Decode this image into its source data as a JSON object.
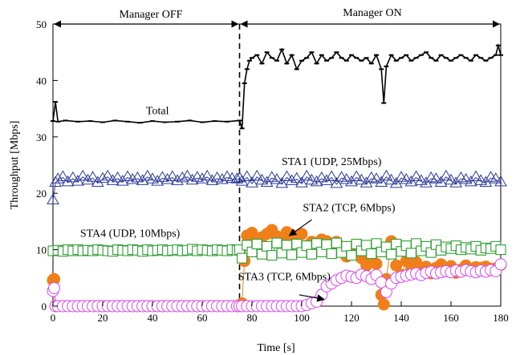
{
  "chart_data": {
    "type": "line",
    "title": "",
    "xlabel": "Time [s]",
    "ylabel": "Throughput [Mbps]",
    "xlim": [
      0,
      180
    ],
    "ylim": [
      0,
      50
    ],
    "xticks": [
      "0",
      "20",
      "40",
      "60",
      "80",
      "100",
      "120",
      "140",
      "160",
      "180"
    ],
    "yticks": [
      "0",
      "10",
      "20",
      "30",
      "40",
      "50"
    ],
    "grid": false,
    "legend": "none",
    "phases": [
      {
        "label": "Manager OFF",
        "x_start": 0,
        "x_end": 75
      },
      {
        "label": "Manager ON",
        "x_start": 75,
        "x_end": 180
      }
    ],
    "switch_time": 75,
    "annotations": [
      {
        "text": "Total",
        "x": 42,
        "y": 34
      },
      {
        "text": "STA1 (UDP, 25Mbps)",
        "x": 112,
        "y": 25
      },
      {
        "text": "STA2 (TCP, 6Mbps)",
        "x": 119,
        "y": 16.8
      },
      {
        "text": "STA4 (UDP, 10Mbps)",
        "x": 31,
        "y": 12.3
      },
      {
        "text": "STA3 (TCP, 6Mbps)",
        "x": 93,
        "y": 4.6
      }
    ],
    "series": [
      {
        "id": "total",
        "color": "#000000",
        "marker": "dash",
        "x": [
          0,
          1,
          2,
          5,
          10,
          15,
          20,
          25,
          30,
          35,
          40,
          45,
          50,
          55,
          60,
          65,
          70,
          75,
          76,
          77,
          78,
          79,
          80,
          82,
          84,
          86,
          88,
          90,
          92,
          94,
          96,
          98,
          100,
          102,
          104,
          106,
          108,
          110,
          112,
          114,
          116,
          118,
          120,
          122,
          124,
          126,
          128,
          130,
          132,
          133,
          134,
          136,
          138,
          140,
          142,
          144,
          146,
          148,
          150,
          152,
          154,
          156,
          158,
          160,
          162,
          164,
          166,
          168,
          170,
          172,
          174,
          176,
          178,
          179,
          180
        ],
        "y": [
          32.8,
          36.2,
          32.7,
          32.9,
          32.7,
          32.8,
          32.6,
          32.9,
          32.7,
          32.5,
          32.8,
          32.6,
          32.7,
          32.9,
          32.6,
          32.8,
          32.7,
          32.9,
          31.5,
          39.5,
          42,
          43.5,
          44,
          44.5,
          43,
          45,
          44,
          43.5,
          45.5,
          43,
          44.5,
          42,
          43.5,
          44,
          45,
          43,
          44.5,
          43.5,
          44,
          45,
          44,
          43.5,
          44.5,
          44,
          43.5,
          44,
          43,
          44.5,
          42,
          36,
          42.5,
          44.5,
          43.5,
          44,
          44.5,
          43.5,
          44,
          44.5,
          45,
          44,
          43.5,
          44.5,
          44,
          43.5,
          44,
          44.5,
          44,
          43.5,
          44.5,
          44,
          43.5,
          44,
          44.5,
          46.2,
          44.5
        ]
      },
      {
        "id": "sta1",
        "color": "#2b3a99",
        "marker": "triangle",
        "x": [
          0,
          1,
          2,
          4,
          6,
          8,
          10,
          12,
          14,
          16,
          18,
          20,
          22,
          24,
          26,
          28,
          30,
          32,
          34,
          36,
          38,
          40,
          42,
          44,
          46,
          48,
          50,
          52,
          54,
          56,
          58,
          60,
          62,
          64,
          66,
          68,
          70,
          72,
          74,
          75,
          76,
          78,
          80,
          82,
          84,
          86,
          88,
          90,
          92,
          94,
          96,
          98,
          100,
          102,
          104,
          106,
          108,
          110,
          112,
          114,
          116,
          118,
          120,
          122,
          124,
          126,
          128,
          130,
          132,
          134,
          136,
          138,
          140,
          142,
          144,
          146,
          148,
          150,
          152,
          154,
          156,
          158,
          160,
          162,
          164,
          166,
          168,
          170,
          172,
          174,
          176,
          178,
          180
        ],
        "y": [
          18.7,
          21.8,
          22.4,
          22.8,
          21.9,
          22.6,
          22.0,
          22.9,
          22.2,
          22.7,
          21.8,
          22.5,
          22.9,
          22.1,
          22.6,
          22.0,
          22.8,
          22.3,
          22.6,
          22.1,
          22.9,
          22.4,
          22.0,
          22.7,
          22.3,
          22.8,
          22.1,
          22.6,
          22.9,
          22.2,
          22.7,
          22.4,
          22.9,
          22.1,
          22.6,
          22.3,
          22.8,
          22.5,
          22.4,
          22.6,
          22.0,
          22.8,
          21.7,
          22.9,
          22.2,
          21.8,
          22.7,
          22.3,
          21.6,
          22.8,
          22.1,
          22.5,
          21.7,
          22.9,
          22.2,
          21.9,
          22.6,
          22.1,
          22.8,
          21.6,
          22.7,
          22.3,
          21.9,
          22.8,
          22.2,
          21.7,
          22.6,
          22.4,
          21.8,
          22.9,
          22.2,
          21.6,
          22.7,
          22.3,
          21.9,
          22.8,
          22.1,
          21.7,
          22.6,
          22.4,
          21.8,
          22.9,
          22.2,
          21.7,
          22.6,
          22.3,
          21.9,
          22.8,
          22.1,
          21.8,
          22.7,
          22.4,
          21.9
        ]
      },
      {
        "id": "sta2",
        "color": "#f07f1a",
        "marker": "circle-filled",
        "x": [
          0,
          0.5,
          1,
          2,
          4,
          6,
          8,
          10,
          12,
          14,
          16,
          18,
          20,
          22,
          24,
          26,
          28,
          30,
          32,
          34,
          36,
          38,
          40,
          42,
          44,
          46,
          48,
          50,
          52,
          54,
          56,
          58,
          60,
          62,
          64,
          66,
          68,
          70,
          72,
          74,
          75,
          76,
          77,
          78,
          80,
          82,
          84,
          86,
          88,
          90,
          92,
          94,
          96,
          98,
          100,
          102,
          104,
          106,
          108,
          110,
          112,
          114,
          116,
          118,
          120,
          122,
          124,
          126,
          128,
          130,
          132,
          133,
          134,
          136,
          138,
          140,
          142,
          144,
          146,
          148,
          150,
          152,
          154,
          156,
          158,
          160,
          162,
          164,
          166,
          168,
          170,
          172,
          174,
          176,
          178,
          180
        ],
        "y": [
          4.6,
          4.8,
          0,
          0,
          0,
          0,
          0,
          0,
          0,
          0,
          0,
          0,
          0,
          0,
          0,
          0,
          0,
          0,
          0,
          0,
          0,
          0,
          0,
          0,
          0,
          0,
          0,
          0,
          0,
          0,
          0,
          0,
          0,
          0,
          0,
          0,
          0,
          0,
          0,
          0,
          0,
          0.5,
          8,
          12.5,
          13,
          11.5,
          12.2,
          12.8,
          13.5,
          12.4,
          11.8,
          13.1,
          12.6,
          11.2,
          12.8,
          10.5,
          11.4,
          11.2,
          11.8,
          11.5,
          10.8,
          11.4,
          10.2,
          8.8,
          9.6,
          10.5,
          8.5,
          7.2,
          8.8,
          7.5,
          2,
          0.3,
          4.8,
          11.5,
          7.2,
          5.5,
          8.0,
          6.5,
          7.8,
          6.3,
          7.0,
          5.8,
          6.8,
          7.4,
          6.2,
          7.1,
          5.9,
          6.5,
          7.2,
          6.4,
          6.9,
          6.8,
          7.0,
          6.6,
          6.7,
          7.3
        ]
      },
      {
        "id": "sta3",
        "color": "#d946ef",
        "marker": "circle-open",
        "x": [
          0,
          0.5,
          1,
          2,
          4,
          6,
          8,
          10,
          12,
          14,
          16,
          18,
          20,
          22,
          24,
          26,
          28,
          30,
          32,
          34,
          36,
          38,
          40,
          42,
          44,
          46,
          48,
          50,
          52,
          54,
          56,
          58,
          60,
          62,
          64,
          66,
          68,
          70,
          72,
          74,
          75,
          76,
          78,
          80,
          82,
          84,
          86,
          88,
          90,
          92,
          94,
          96,
          98,
          100,
          102,
          104,
          106,
          108,
          110,
          112,
          114,
          116,
          118,
          120,
          122,
          124,
          126,
          128,
          130,
          132,
          134,
          136,
          138,
          140,
          142,
          144,
          146,
          148,
          150,
          152,
          154,
          156,
          158,
          160,
          162,
          164,
          166,
          168,
          170,
          172,
          174,
          176,
          178,
          180
        ],
        "y": [
          2.7,
          3.2,
          0,
          0,
          0,
          0,
          0,
          0,
          0,
          0,
          0,
          0,
          0,
          0,
          0,
          0,
          0,
          0,
          0,
          0,
          0,
          0,
          0,
          0,
          0,
          0,
          0,
          0,
          0,
          0,
          0,
          0,
          0,
          0,
          0,
          0,
          0,
          0,
          0,
          0,
          0,
          0,
          0,
          0,
          0,
          0,
          0,
          0,
          0,
          0,
          0,
          0,
          0,
          0,
          0.2,
          0.5,
          0.8,
          2.0,
          3.5,
          4.0,
          4.6,
          5.0,
          5.4,
          5.2,
          5.0,
          5.6,
          5.3,
          4.8,
          5.5,
          4.2,
          2.5,
          4.0,
          5.0,
          5.2,
          5.4,
          5.6,
          5.8,
          5.5,
          5.9,
          6.1,
          5.8,
          6.0,
          6.2,
          6.0,
          6.3,
          6.1,
          6.4,
          6.2,
          6.0,
          6.3,
          6.1,
          6.4,
          6.2,
          7.4
        ]
      },
      {
        "id": "sta4",
        "color": "#2e9e34",
        "marker": "square-open",
        "x": [
          0,
          2,
          4,
          6,
          8,
          10,
          12,
          14,
          16,
          18,
          20,
          22,
          24,
          26,
          28,
          30,
          32,
          34,
          36,
          38,
          40,
          42,
          44,
          46,
          48,
          50,
          52,
          54,
          56,
          58,
          60,
          62,
          64,
          66,
          68,
          70,
          72,
          74,
          75,
          76,
          78,
          80,
          82,
          84,
          86,
          88,
          90,
          92,
          94,
          96,
          98,
          100,
          102,
          104,
          106,
          108,
          110,
          112,
          114,
          116,
          118,
          120,
          122,
          124,
          126,
          128,
          130,
          132,
          134,
          136,
          138,
          140,
          142,
          144,
          146,
          148,
          150,
          152,
          154,
          156,
          158,
          160,
          162,
          164,
          166,
          168,
          170,
          172,
          174,
          176,
          178,
          180
        ],
        "y": [
          9.8,
          9.9,
          9.7,
          10.0,
          9.8,
          10.0,
          9.8,
          9.9,
          9.8,
          10.0,
          9.9,
          9.8,
          9.7,
          10.0,
          9.9,
          9.8,
          10.0,
          9.9,
          9.7,
          10.0,
          9.8,
          9.9,
          10.0,
          9.8,
          9.9,
          10.0,
          9.8,
          9.9,
          10.1,
          9.8,
          10.0,
          9.9,
          9.8,
          10.0,
          9.9,
          9.8,
          10.0,
          9.9,
          10.0,
          8.5,
          10.8,
          9.6,
          11.0,
          9.2,
          10.6,
          9.0,
          11.2,
          9.4,
          10.8,
          9.1,
          11.0,
          9.5,
          10.7,
          9.2,
          11.1,
          9.6,
          10.9,
          9.3,
          11.2,
          9.5,
          10.6,
          9.0,
          11.0,
          9.8,
          10.8,
          9.3,
          11.1,
          9.6,
          10.5,
          9.2,
          11.0,
          9.7,
          10.7,
          9.4,
          11.1,
          9.8,
          10.6,
          9.5,
          10.9,
          9.9,
          10.5,
          10.2,
          10.7,
          10.0,
          10.4,
          10.1,
          10.6,
          9.9,
          10.3,
          10.2,
          10.6,
          10.0
        ]
      }
    ]
  }
}
